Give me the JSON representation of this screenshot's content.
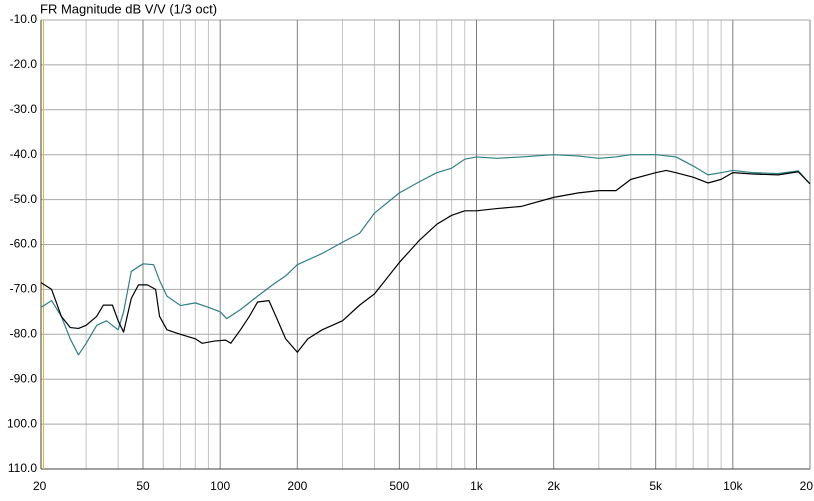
{
  "chart_data": {
    "type": "line",
    "title": "FR Magnitude dB V/V (1/3 oct)",
    "log_x": true,
    "grid": true,
    "xlim": [
      20,
      20000
    ],
    "ylim": [
      -110,
      -10
    ],
    "xticks": [
      20,
      50,
      100,
      200,
      500,
      {
        "value": 1000,
        "label": "1k"
      },
      {
        "value": 2000,
        "label": "2k"
      },
      {
        "value": 5000,
        "label": "5k"
      },
      {
        "value": 10000,
        "label": "10k"
      },
      {
        "value": 20000,
        "label": "20"
      }
    ],
    "xminor": [
      30,
      40,
      60,
      70,
      80,
      90,
      300,
      400,
      600,
      700,
      800,
      900,
      3000,
      4000,
      6000,
      7000,
      8000,
      9000
    ],
    "yticks": [
      {
        "value": -10,
        "label": "-10.0"
      },
      {
        "value": -20,
        "label": "-20.0"
      },
      {
        "value": -30,
        "label": "-30.0"
      },
      {
        "value": -40,
        "label": "-40.0"
      },
      {
        "value": -50,
        "label": "-50.0"
      },
      {
        "value": -60,
        "label": "-60.0"
      },
      {
        "value": -70,
        "label": "-70.0"
      },
      {
        "value": -80,
        "label": "-80.0"
      },
      {
        "value": -90,
        "label": "-90.0"
      },
      {
        "value": -100,
        "label": "100.0"
      },
      {
        "value": -110,
        "label": "110.0"
      }
    ],
    "series": [
      {
        "color": "#2f7f86",
        "x": [
          20,
          22,
          24,
          26,
          28,
          30,
          33,
          36,
          40,
          42,
          45,
          50,
          55,
          58,
          62,
          70,
          80,
          90,
          100,
          106,
          120,
          140,
          160,
          180,
          200,
          250,
          300,
          350,
          400,
          500,
          600,
          700,
          800,
          900,
          1000,
          1200,
          1500,
          2000,
          2500,
          3000,
          3500,
          4000,
          5000,
          6000,
          7000,
          8000,
          9000,
          10000,
          12000,
          15000,
          18000,
          20000
        ],
        "values": [
          -74,
          -72.5,
          -76,
          -81,
          -84.6,
          -82,
          -78,
          -77,
          -79,
          -75,
          -66,
          -64.3,
          -64.5,
          -68,
          -71.5,
          -73.6,
          -73,
          -74,
          -75,
          -76.5,
          -74.5,
          -71.5,
          -69,
          -67,
          -64.5,
          -62,
          -59.5,
          -57.5,
          -53,
          -48.5,
          -46,
          -44,
          -43,
          -41,
          -40.5,
          -40.8,
          -40.5,
          -40,
          -40.3,
          -40.8,
          -40.5,
          -40,
          -40,
          -40.5,
          -42.5,
          -44.5,
          -44,
          -43.5,
          -44,
          -44.2,
          -43.6,
          -46.5
        ]
      },
      {
        "color": "#000000",
        "x": [
          20,
          22,
          24,
          26,
          28,
          30,
          33,
          35,
          38,
          40,
          42,
          45,
          48,
          52,
          56,
          58,
          62,
          70,
          80,
          85,
          95,
          105,
          110,
          120,
          130,
          140,
          155,
          165,
          180,
          200,
          220,
          250,
          300,
          350,
          400,
          500,
          600,
          700,
          800,
          900,
          1000,
          1200,
          1500,
          2000,
          2500,
          3000,
          3500,
          4000,
          5000,
          5500,
          6000,
          7000,
          8000,
          9000,
          10000,
          12000,
          15000,
          18000,
          20000
        ],
        "values": [
          -68.5,
          -70,
          -76,
          -78.5,
          -78.7,
          -78,
          -76,
          -73.5,
          -73.5,
          -77,
          -79.5,
          -72,
          -69,
          -69,
          -70,
          -76,
          -79,
          -80,
          -81,
          -82,
          -81.5,
          -81.3,
          -82,
          -79,
          -76,
          -72.8,
          -72.5,
          -76,
          -81,
          -84,
          -81,
          -79,
          -77,
          -73.5,
          -71,
          -64,
          -59,
          -55.5,
          -53.5,
          -52.5,
          -52.5,
          -52,
          -51.5,
          -49.5,
          -48.5,
          -48,
          -48,
          -45.5,
          -44,
          -43.5,
          -44,
          -45,
          -46.3,
          -45.5,
          -44,
          -44.3,
          -44.5,
          -43.8,
          -46.5
        ]
      }
    ]
  }
}
